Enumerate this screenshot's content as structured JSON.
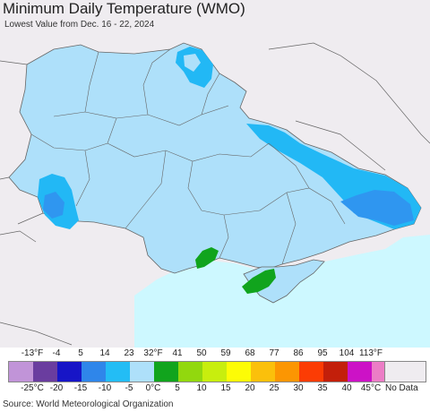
{
  "title": "Minimum Daily Temperature (WMO)",
  "subtitle": "Lowest Value from Dec. 16 - 22, 2024",
  "colors": {
    "background_land": "#efecf0",
    "sea": "#cdf8ff",
    "temp_neg5_0": "#aee0fa",
    "temp_neg10_neg5": "#22b8f5",
    "temp_neg15_neg10": "#2f96f0",
    "temp_0_5": "#11a41d",
    "border": "#666666",
    "nodata": "#efecf0"
  },
  "legend": {
    "fahrenheit_labels": [
      "-13°F",
      "-4",
      "5",
      "14",
      "23",
      "32°F",
      "41",
      "50",
      "59",
      "68",
      "77",
      "86",
      "95",
      "104",
      "113°F"
    ],
    "celsius_labels": [
      "-25°C",
      "-20",
      "-15",
      "-10",
      "-5",
      "0°C",
      "5",
      "10",
      "15",
      "20",
      "25",
      "30",
      "35",
      "40",
      "45°C"
    ],
    "swatch_colors": [
      "#c194d8",
      "#6a3d9f",
      "#1715c7",
      "#2f86ea",
      "#23bdf5",
      "#aee0fa",
      "#11a41d",
      "#92d80e",
      "#c8ee0e",
      "#fdfc06",
      "#fbc00b",
      "#fc9602",
      "#fc3c04",
      "#c31f0a",
      "#cc12c6",
      "#ec7dc6"
    ],
    "nodata_label": "No Data"
  },
  "source": "Source: World Meteorological Organization"
}
